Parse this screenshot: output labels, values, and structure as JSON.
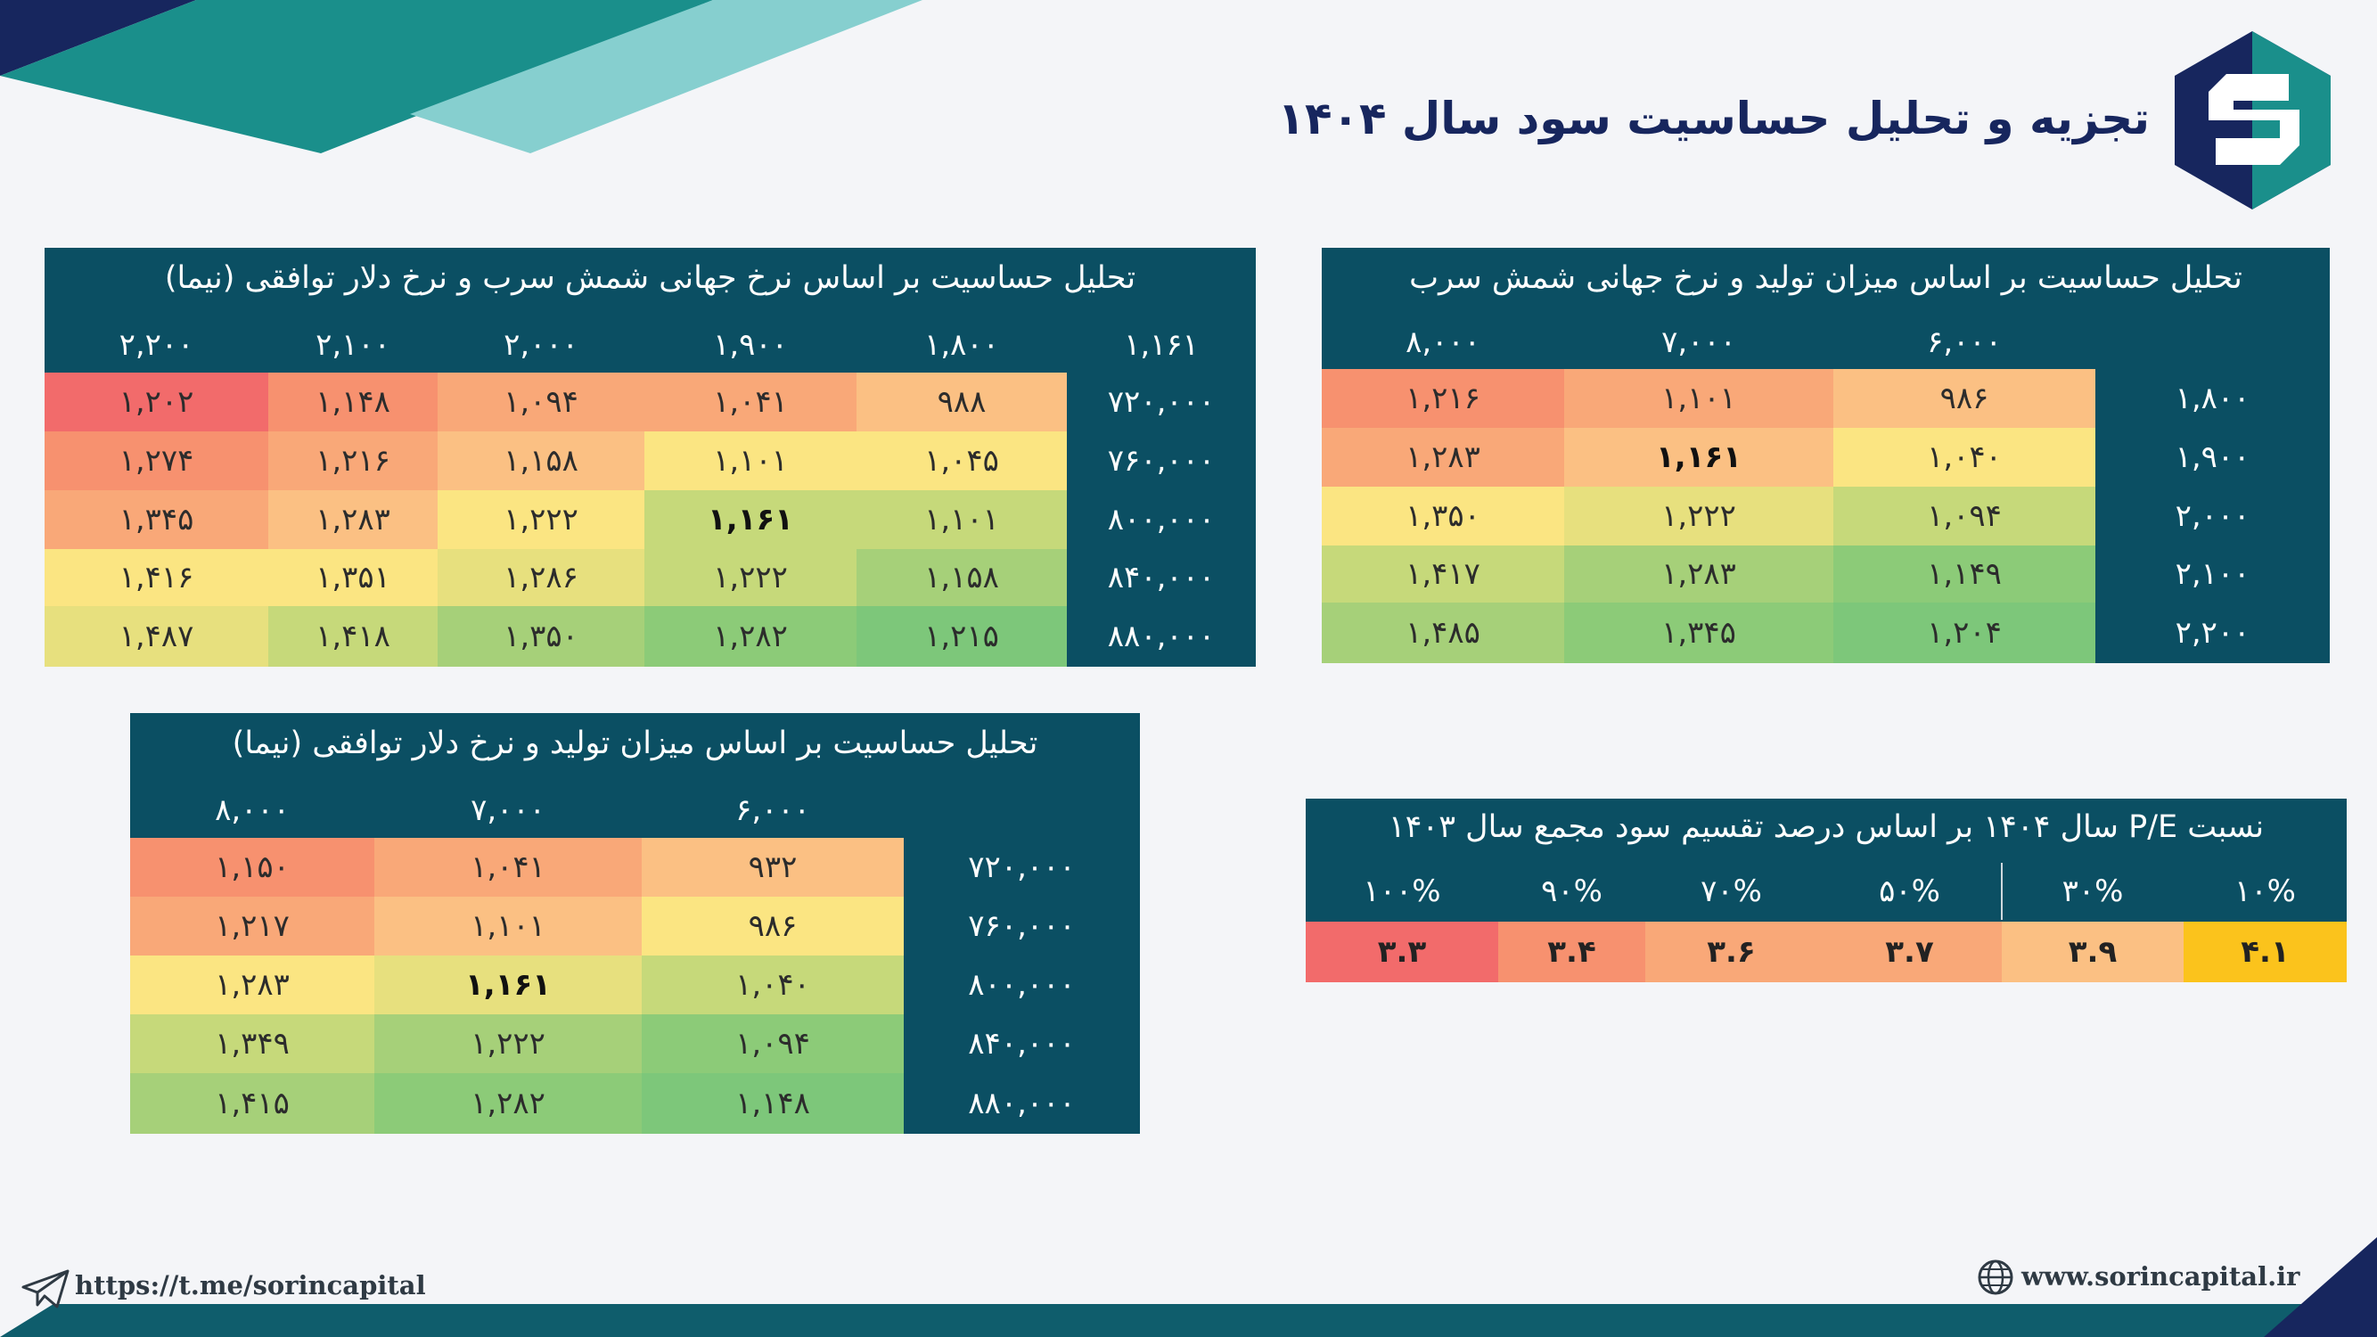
{
  "header": {
    "title": "تجزیه و تحلیل حساسیت سود سال ۱۴۰۴"
  },
  "colors": {
    "panel_bg": "#0b4f63",
    "title_color": "#17265e",
    "heat_red": "#f26b6b",
    "heat_orange": "#f9a878",
    "heat_yellow": "#fbe582",
    "heat_green": "#7dc77a",
    "accent_gold": "#fbc31c"
  },
  "table_a": {
    "title": "تحلیل حساسیت بر اساس نرخ جهانی شمش سرب و نرخ دلار توافقی (نیما)",
    "corner": "۱,۱۶۱",
    "col_headers": [
      "۱,۸۰۰",
      "۱,۹۰۰",
      "۲,۰۰۰",
      "۲,۱۰۰",
      "۲,۲۰۰"
    ],
    "row_headers": [
      "۷۲۰,۰۰۰",
      "۷۶۰,۰۰۰",
      "۸۰۰,۰۰۰",
      "۸۴۰,۰۰۰",
      "۸۸۰,۰۰۰"
    ],
    "rows": [
      [
        "۹۸۸",
        "۱,۰۴۱",
        "۱,۰۹۴",
        "۱,۱۴۸",
        "۱,۲۰۲"
      ],
      [
        "۱,۰۴۵",
        "۱,۱۰۱",
        "۱,۱۵۸",
        "۱,۲۱۶",
        "۱,۲۷۴"
      ],
      [
        "۱,۱۰۱",
        "۱,۱۶۱",
        "۱,۲۲۲",
        "۱,۲۸۳",
        "۱,۳۴۵"
      ],
      [
        "۱,۱۵۸",
        "۱,۲۲۲",
        "۱,۲۸۶",
        "۱,۳۵۱",
        "۱,۴۱۶"
      ],
      [
        "۱,۲۱۵",
        "۱,۲۸۲",
        "۱,۳۵۰",
        "۱,۴۱۸",
        "۱,۴۸۷"
      ]
    ]
  },
  "table_b": {
    "title": "تحلیل حساسیت بر اساس میزان تولید و نرخ جهانی شمش سرب",
    "col_headers": [
      "۶,۰۰۰",
      "۷,۰۰۰",
      "۸,۰۰۰"
    ],
    "row_headers": [
      "۱,۸۰۰",
      "۱,۹۰۰",
      "۲,۰۰۰",
      "۲,۱۰۰",
      "۲,۲۰۰"
    ],
    "rows": [
      [
        "۹۸۶",
        "۱,۱۰۱",
        "۱,۲۱۶"
      ],
      [
        "۱,۰۴۰",
        "۱,۱۶۱",
        "۱,۲۸۳"
      ],
      [
        "۱,۰۹۴",
        "۱,۲۲۲",
        "۱,۳۵۰"
      ],
      [
        "۱,۱۴۹",
        "۱,۲۸۳",
        "۱,۴۱۷"
      ],
      [
        "۱,۲۰۴",
        "۱,۳۴۵",
        "۱,۴۸۵"
      ]
    ]
  },
  "table_c": {
    "title": "تحلیل حساسیت بر اساس میزان تولید و نرخ دلار توافقی (نیما)",
    "col_headers": [
      "۶,۰۰۰",
      "۷,۰۰۰",
      "۸,۰۰۰"
    ],
    "row_headers": [
      "۷۲۰,۰۰۰",
      "۷۶۰,۰۰۰",
      "۸۰۰,۰۰۰",
      "۸۴۰,۰۰۰",
      "۸۸۰,۰۰۰"
    ],
    "rows": [
      [
        "۹۳۲",
        "۱,۰۴۱",
        "۱,۱۵۰"
      ],
      [
        "۹۸۶",
        "۱,۱۰۱",
        "۱,۲۱۷"
      ],
      [
        "۱,۰۴۰",
        "۱,۱۶۱",
        "۱,۲۸۳"
      ],
      [
        "۱,۰۹۴",
        "۱,۲۲۲",
        "۱,۳۴۹"
      ],
      [
        "۱,۱۴۸",
        "۱,۲۸۲",
        "۱,۴۱۵"
      ]
    ]
  },
  "table_pe": {
    "title": "نسبت P/E سال ۱۴۰۴ بر اساس درصد تقسیم سود مجمع سال ۱۴۰۳",
    "col_headers": [
      "۱۰%",
      "۳۰%",
      "۵۰%",
      "۷۰%",
      "۹۰%",
      "۱۰۰%"
    ],
    "values": [
      "۴.۱",
      "۳.۹",
      "۳.۷",
      "۳.۶",
      "۳.۴",
      "۳.۳"
    ]
  },
  "footer": {
    "telegram_link": "https://t.me/sorincapital",
    "website": "www.sorincapital.ir",
    "telegram_icon": "paper-plane-icon",
    "website_icon": "globe-icon"
  }
}
